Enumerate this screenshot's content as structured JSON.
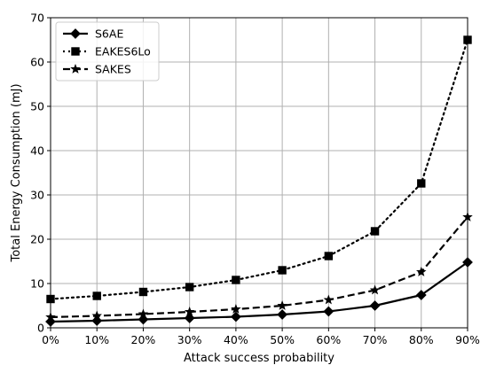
{
  "chart_data": {
    "type": "line",
    "categories": [
      "0%",
      "10%",
      "20%",
      "30%",
      "40%",
      "50%",
      "60%",
      "70%",
      "80%",
      "90%"
    ],
    "xlabel": "Attack success probability",
    "ylabel": "Total Energy Consumption (mJ)",
    "ylim": [
      0,
      70
    ],
    "yticks": [
      0,
      10,
      20,
      30,
      40,
      50,
      60,
      70
    ],
    "grid": true,
    "legend_position": "top-left",
    "series": [
      {
        "name": "S6AE",
        "values": [
          1.4,
          1.6,
          1.9,
          2.2,
          2.5,
          3.0,
          3.7,
          5.0,
          7.4,
          14.8
        ],
        "color": "#000000",
        "line_style": "solid",
        "marker": "diamond"
      },
      {
        "name": "EAKES6Lo",
        "values": [
          6.5,
          7.2,
          8.1,
          9.2,
          10.8,
          13.0,
          16.2,
          21.8,
          32.6,
          65.0
        ],
        "color": "#000000",
        "line_style": "dotted",
        "marker": "square"
      },
      {
        "name": "SAKES",
        "values": [
          2.4,
          2.7,
          3.1,
          3.6,
          4.2,
          5.0,
          6.3,
          8.5,
          12.6,
          25.0
        ],
        "color": "#000000",
        "line_style": "dashed",
        "marker": "star"
      }
    ]
  }
}
